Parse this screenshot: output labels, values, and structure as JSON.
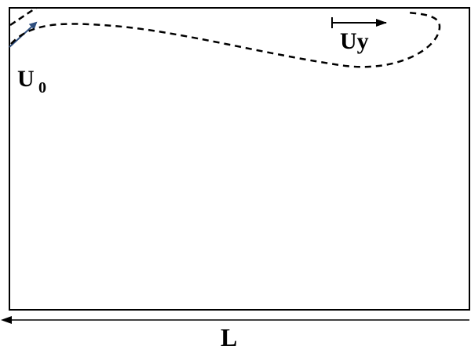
{
  "diagram": {
    "labels": {
      "inlet_velocity": "U",
      "inlet_velocity_subscript": "0",
      "drift_velocity": "Uy",
      "length": "L"
    },
    "colors": {
      "outline": "#000000",
      "inlet_arrow": "#2f4f7f",
      "jet_path": "#000000"
    }
  }
}
